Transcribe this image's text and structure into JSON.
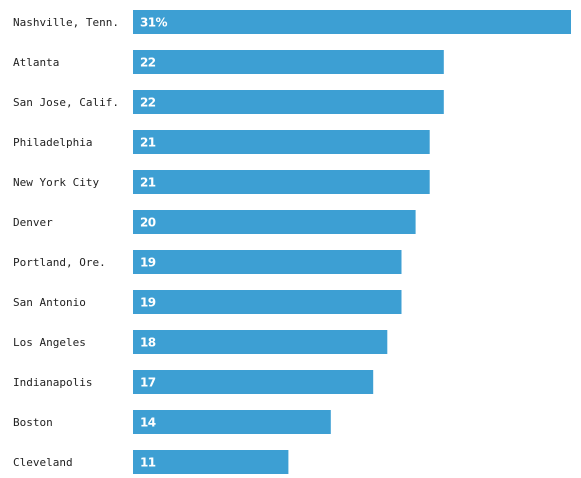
{
  "colors": {
    "bar": "#3d9fd3",
    "label_text": "#222222",
    "value_text": "#ffffff"
  },
  "chart_data": {
    "type": "bar",
    "orientation": "horizontal",
    "title": "",
    "xlabel": "",
    "ylabel": "",
    "categories": [
      "Nashville, Tenn.",
      "Atlanta",
      "San Jose, Calif.",
      "Philadelphia",
      "New York City",
      "Denver",
      "Portland, Ore.",
      "San Antonio",
      "Los Angeles",
      "Indianapolis",
      "Boston",
      "Cleveland"
    ],
    "values": [
      31,
      22,
      22,
      21,
      21,
      20,
      19,
      19,
      18,
      17,
      14,
      11
    ],
    "value_labels": [
      "31%",
      "22",
      "22",
      "21",
      "21",
      "20",
      "19",
      "19",
      "18",
      "17",
      "14",
      "11"
    ],
    "xlim": [
      0,
      31
    ],
    "grid": false,
    "legend": "none"
  }
}
